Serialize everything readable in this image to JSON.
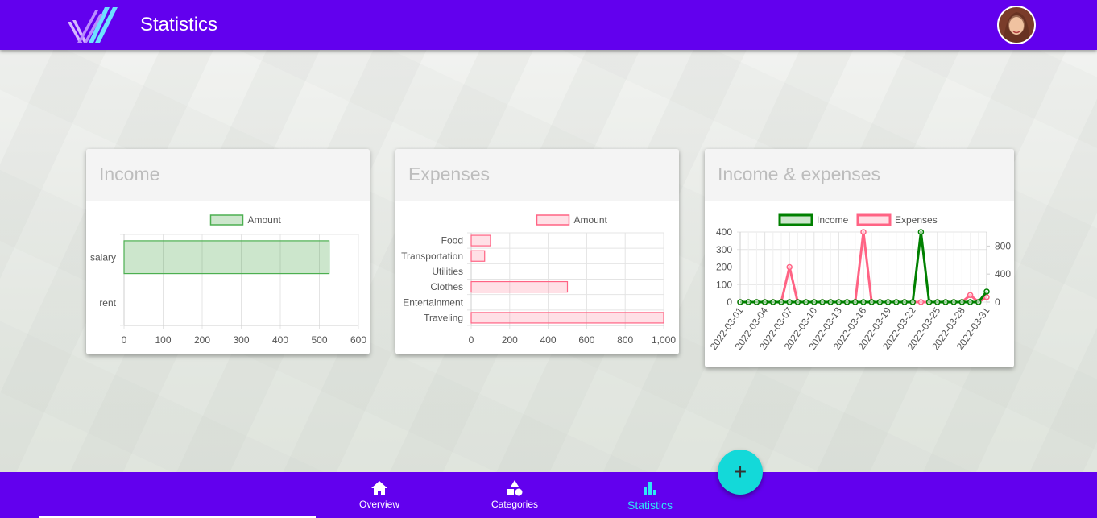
{
  "app": {
    "title": "Statistics"
  },
  "nav": {
    "items": [
      {
        "label": "Overview",
        "icon": "home-icon",
        "active": false
      },
      {
        "label": "Categories",
        "icon": "shapes-icon",
        "active": false
      },
      {
        "label": "Statistics",
        "icon": "bar-chart-icon",
        "active": true
      }
    ]
  },
  "fab": {
    "label": "+"
  },
  "colors": {
    "primary": "#6200ee",
    "fab": "#13d9d9",
    "active_nav": "#2ee6f5",
    "income": "#008000",
    "expenses": "#ff6384"
  },
  "cards": {
    "income": {
      "title": "Income"
    },
    "expenses": {
      "title": "Expenses"
    },
    "combined": {
      "title": "Income & expenses"
    }
  },
  "chart_data": [
    {
      "type": "bar",
      "orientation": "horizontal",
      "categories": [
        "salary",
        "rent"
      ],
      "series": [
        {
          "name": "Amount",
          "values": [
            525,
            0
          ]
        }
      ],
      "xlim": [
        0,
        600
      ],
      "xticks": [
        "0",
        "100",
        "200",
        "300",
        "400",
        "500",
        "600"
      ],
      "grid": true,
      "legend": "top"
    },
    {
      "type": "bar",
      "orientation": "horizontal",
      "categories": [
        "Food",
        "Transportation",
        "Utilities",
        "Clothes",
        "Entertainment",
        "Traveling"
      ],
      "series": [
        {
          "name": "Amount",
          "values": [
            100,
            70,
            0,
            500,
            0,
            1000
          ]
        }
      ],
      "xlim": [
        0,
        1000
      ],
      "xticks": [
        "0",
        "200",
        "400",
        "600",
        "800",
        "1,000"
      ],
      "grid": true,
      "legend": "top"
    },
    {
      "type": "line",
      "x": [
        "2022-03-01",
        "2022-03-02",
        "2022-03-03",
        "2022-03-04",
        "2022-03-05",
        "2022-03-06",
        "2022-03-07",
        "2022-03-08",
        "2022-03-09",
        "2022-03-10",
        "2022-03-11",
        "2022-03-12",
        "2022-03-13",
        "2022-03-14",
        "2022-03-15",
        "2022-03-16",
        "2022-03-17",
        "2022-03-18",
        "2022-03-19",
        "2022-03-20",
        "2022-03-21",
        "2022-03-22",
        "2022-03-23",
        "2022-03-24",
        "2022-03-25",
        "2022-03-26",
        "2022-03-27",
        "2022-03-28",
        "2022-03-29",
        "2022-03-30",
        "2022-03-31"
      ],
      "xtick_labels": [
        "2022-03-01",
        "2022-03-04",
        "2022-03-07",
        "2022-03-10",
        "2022-03-13",
        "2022-03-16",
        "2022-03-19",
        "2022-03-22",
        "2022-03-25",
        "2022-03-28",
        "2022-03-31"
      ],
      "series": [
        {
          "name": "Income",
          "axis": "left",
          "values": [
            0,
            0,
            0,
            0,
            0,
            0,
            0,
            0,
            0,
            0,
            0,
            0,
            0,
            0,
            0,
            0,
            0,
            0,
            0,
            0,
            0,
            0,
            400,
            0,
            0,
            0,
            0,
            0,
            0,
            0,
            60
          ]
        },
        {
          "name": "Expenses",
          "axis": "right",
          "values": [
            0,
            0,
            0,
            0,
            0,
            0,
            500,
            0,
            0,
            0,
            0,
            0,
            0,
            0,
            0,
            1000,
            0,
            0,
            0,
            0,
            0,
            0,
            0,
            0,
            0,
            0,
            0,
            0,
            100,
            0,
            70
          ]
        }
      ],
      "ylim_left": [
        0,
        400
      ],
      "yticks_left": [
        "0",
        "100",
        "200",
        "300",
        "400"
      ],
      "ylim_right": [
        0,
        1000
      ],
      "yticks_right": [
        "0",
        "400",
        "800"
      ],
      "grid": true,
      "legend": "top"
    }
  ]
}
